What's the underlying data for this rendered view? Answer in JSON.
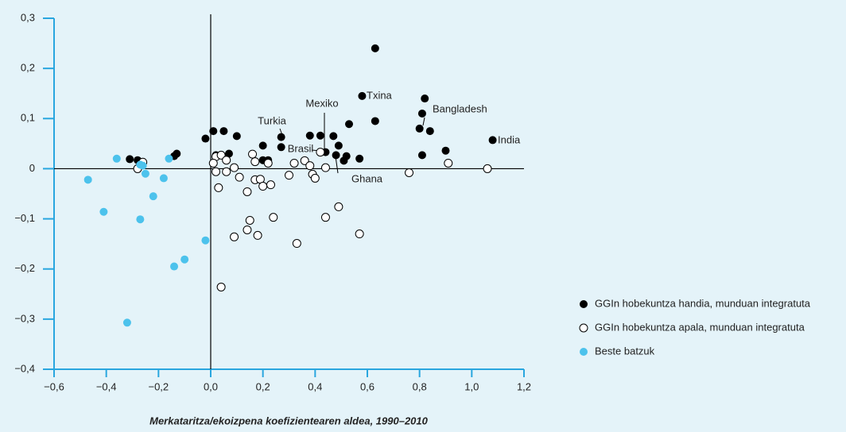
{
  "chart_data": {
    "type": "scatter",
    "xlabel": "Merkataritza/ekoizpena koefizientearen aldea, 1990–2010",
    "xlim": [
      -0.6,
      1.2
    ],
    "xticks": [
      {
        "value": -0.6,
        "label": "−0,6"
      },
      {
        "value": -0.4,
        "label": "−0,4"
      },
      {
        "value": -0.2,
        "label": "−0,2"
      },
      {
        "value": 0,
        "label": "0,0"
      },
      {
        "value": 0.2,
        "label": "0,2"
      },
      {
        "value": 0.4,
        "label": "0,4"
      },
      {
        "value": 0.6,
        "label": "0,6"
      },
      {
        "value": 0.8,
        "label": "0,8"
      },
      {
        "value": 1.0,
        "label": "1,0"
      },
      {
        "value": 1.2,
        "label": "1,2"
      }
    ],
    "ylim": [
      -0.4,
      0.3
    ],
    "yticks": [
      {
        "value": 0.3,
        "label": "0,3"
      },
      {
        "value": 0.2,
        "label": "0,2"
      },
      {
        "value": 0.1,
        "label": "0,1"
      },
      0,
      {
        "value": -0.1,
        "label": "−0,1"
      },
      {
        "value": -0.2,
        "label": "−0,2"
      },
      {
        "value": -0.3,
        "label": "−0,3"
      },
      {
        "value": -0.4,
        "label": "−0,4"
      }
    ],
    "legend": "right",
    "series": [
      {
        "name": "GGIn hobekuntza handia, munduan integratuta",
        "color": "#000000",
        "fill": "solid",
        "x": [
          0.63,
          0.58,
          0.63,
          0.82,
          0.8,
          0.81,
          0.84,
          0.81,
          0.9,
          1.08,
          -0.02,
          0.01,
          0.05,
          0.02,
          0.07,
          0.1,
          0.27,
          0.27,
          0.2,
          0.2,
          0.22,
          0.38,
          0.42,
          0.44,
          0.47,
          0.49,
          0.53,
          0.48,
          0.51,
          0.52,
          0.57,
          -0.31,
          -0.28,
          -0.14,
          -0.13
        ],
        "values": [
          0.24,
          0.145,
          0.095,
          0.14,
          0.08,
          0.11,
          0.075,
          0.027,
          0.036,
          0.057,
          0.06,
          0.075,
          0.075,
          0.027,
          0.03,
          0.065,
          0.063,
          0.043,
          0.046,
          0.017,
          0.017,
          0.066,
          0.066,
          0.033,
          0.065,
          0.046,
          0.089,
          0.027,
          0.016,
          0.025,
          0.02,
          0.019,
          0.017,
          0.025,
          0.03
        ]
      },
      {
        "name": "GGIn hobekuntza apala, munduan integratuta",
        "color": "#000000",
        "fill": "hollow",
        "x": [
          0.02,
          0.02,
          0.01,
          0.04,
          0.06,
          0.06,
          0.09,
          0.11,
          0.03,
          0.14,
          0.16,
          0.17,
          0.17,
          0.19,
          0.2,
          0.22,
          0.23,
          0.3,
          0.32,
          0.36,
          0.38,
          0.39,
          0.4,
          0.42,
          0.44,
          0.15,
          0.14,
          0.18,
          0.09,
          0.24,
          0.33,
          0.44,
          0.49,
          0.57,
          0.04,
          0.76,
          0.91,
          1.06,
          -0.28,
          -0.26
        ],
        "values": [
          0.024,
          -0.006,
          0.011,
          0.027,
          -0.006,
          0.017,
          0.002,
          -0.017,
          -0.038,
          -0.046,
          0.029,
          -0.022,
          0.014,
          -0.021,
          -0.035,
          0.011,
          -0.032,
          -0.013,
          0.011,
          0.016,
          0.006,
          -0.011,
          -0.019,
          0.033,
          0.002,
          -0.103,
          -0.122,
          -0.133,
          -0.136,
          -0.097,
          -0.149,
          -0.097,
          -0.076,
          -0.13,
          -0.236,
          -0.008,
          0.011,
          0.0,
          0.0,
          0.013
        ]
      },
      {
        "name": "Beste batzuk",
        "color": "#4cc2ec",
        "fill": "solid",
        "x": [
          -0.47,
          -0.41,
          -0.36,
          -0.27,
          -0.26,
          -0.25,
          -0.27,
          -0.22,
          -0.18,
          -0.16,
          -0.32,
          -0.14,
          -0.1,
          -0.02
        ],
        "values": [
          -0.022,
          -0.086,
          0.02,
          0.008,
          0.006,
          -0.01,
          -0.101,
          -0.055,
          -0.019,
          0.02,
          -0.307,
          -0.195,
          -0.181,
          -0.143
        ]
      }
    ],
    "annotations": [
      "Txina",
      "Mexiko",
      "Bangladesh",
      "Turkia",
      "Brasil",
      "India",
      "Ghana"
    ]
  }
}
